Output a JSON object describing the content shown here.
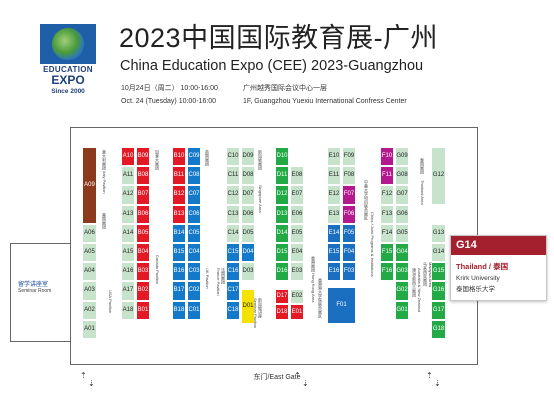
{
  "header": {
    "logo_line1": "EDUCATION",
    "logo_line2": "EXPO",
    "logo_line3": "Since 2000",
    "title_cn": "2023中国国际教育展-广州",
    "title_en": "China Education Expo (CEE) 2023-Guangzhou",
    "date_cn": "10月24日（周二） 10:00-16:00",
    "date_en": "Oct. 24 (Tuesday) 10:00-16:00",
    "venue_cn": "广州越秀国际会议中心一层",
    "venue_en": "1F, Guangzhou Yuexiu International Confress Center"
  },
  "seminar": {
    "cn": "留学讲座室",
    "en": "Seminar Room"
  },
  "gate_label": "东门/East Gate",
  "callout": {
    "booth": "G14",
    "country": "Thailand / 泰国",
    "name_en": "Krirk University",
    "name_cn": "泰国格乐大学"
  },
  "colors": {
    "light_green": "#c7e3cc",
    "brown": "#8b3a1e",
    "red": "#e31a25",
    "blue": "#1479c8",
    "green": "#23a946",
    "yellow": "#f4e300",
    "navy": "#1b6fc1",
    "magenta": "#b4198e",
    "accent": "#a4202f"
  },
  "columns": [
    {
      "zone_labels": [
        "意大利展团 Italy Pavilion",
        "美国展团",
        "USA Pavilion"
      ],
      "booths": [
        {
          "id": "A09",
          "color": "brown",
          "row": 0,
          "span": 4,
          "side": "L"
        },
        {
          "id": "A06",
          "color": "light_green",
          "row": 4,
          "span": 1,
          "side": "L"
        },
        {
          "id": "A05",
          "color": "light_green",
          "row": 5,
          "span": 1,
          "side": "L"
        },
        {
          "id": "A04",
          "color": "light_green",
          "row": 6,
          "span": 1,
          "side": "L"
        },
        {
          "id": "A03",
          "color": "light_green",
          "row": 7,
          "span": 1,
          "side": "L"
        },
        {
          "id": "A02",
          "color": "light_green",
          "row": 8,
          "span": 1,
          "side": "L"
        },
        {
          "id": "A01",
          "color": "light_green",
          "row": 9,
          "span": 1,
          "side": "L"
        }
      ]
    },
    {
      "zone_labels": [
        "加拿大展团",
        "Canada Pavilion"
      ],
      "booths": [
        {
          "id": "A10",
          "color": "red",
          "row": 0,
          "span": 1,
          "side": "L"
        },
        {
          "id": "A11",
          "color": "light_green",
          "row": 1,
          "span": 1,
          "side": "L"
        },
        {
          "id": "A12",
          "color": "light_green",
          "row": 2,
          "span": 1,
          "side": "L"
        },
        {
          "id": "A13",
          "color": "light_green",
          "row": 3,
          "span": 1,
          "side": "L"
        },
        {
          "id": "A14",
          "color": "light_green",
          "row": 4,
          "span": 1,
          "side": "L"
        },
        {
          "id": "A15",
          "color": "light_green",
          "row": 5,
          "span": 1,
          "side": "L"
        },
        {
          "id": "A16",
          "color": "light_green",
          "row": 6,
          "span": 1,
          "side": "L"
        },
        {
          "id": "A17",
          "color": "light_green",
          "row": 7,
          "span": 1,
          "side": "L"
        },
        {
          "id": "A18",
          "color": "light_green",
          "row": 8,
          "span": 1,
          "side": "L"
        },
        {
          "id": "B09",
          "color": "red",
          "row": 0,
          "span": 1,
          "side": "R"
        },
        {
          "id": "B08",
          "color": "red",
          "row": 1,
          "span": 1,
          "side": "R"
        },
        {
          "id": "B07",
          "color": "red",
          "row": 2,
          "span": 1,
          "side": "R"
        },
        {
          "id": "B06",
          "color": "red",
          "row": 3,
          "span": 1,
          "side": "R"
        },
        {
          "id": "B05",
          "color": "red",
          "row": 4,
          "span": 1,
          "side": "R"
        },
        {
          "id": "B04",
          "color": "red",
          "row": 5,
          "span": 1,
          "side": "R"
        },
        {
          "id": "B03",
          "color": "red",
          "row": 6,
          "span": 1,
          "side": "R"
        },
        {
          "id": "B02",
          "color": "red",
          "row": 7,
          "span": 1,
          "side": "R"
        },
        {
          "id": "B01",
          "color": "red",
          "row": 8,
          "span": 1,
          "side": "R"
        }
      ]
    },
    {
      "zone_labels": [
        "英国展团",
        "UK Pavilion"
      ],
      "booths": [
        {
          "id": "B10",
          "color": "red",
          "row": 0,
          "span": 1,
          "side": "L"
        },
        {
          "id": "B11",
          "color": "red",
          "row": 1,
          "span": 1,
          "side": "L"
        },
        {
          "id": "B12",
          "color": "red",
          "row": 2,
          "span": 1,
          "side": "L"
        },
        {
          "id": "B13",
          "color": "red",
          "row": 3,
          "span": 1,
          "side": "L"
        },
        {
          "id": "B14",
          "color": "blue",
          "row": 4,
          "span": 1,
          "side": "L"
        },
        {
          "id": "B15",
          "color": "blue",
          "row": 5,
          "span": 1,
          "side": "L"
        },
        {
          "id": "B16",
          "color": "blue",
          "row": 6,
          "span": 1,
          "side": "L"
        },
        {
          "id": "B17",
          "color": "blue",
          "row": 7,
          "span": 1,
          "side": "L"
        },
        {
          "id": "B18",
          "color": "blue",
          "row": 8,
          "span": 1,
          "side": "L"
        },
        {
          "id": "C09",
          "color": "blue",
          "row": 0,
          "span": 1,
          "side": "R"
        },
        {
          "id": "C08",
          "color": "blue",
          "row": 1,
          "span": 1,
          "side": "R"
        },
        {
          "id": "C07",
          "color": "blue",
          "row": 2,
          "span": 1,
          "side": "R"
        },
        {
          "id": "C06",
          "color": "blue",
          "row": 3,
          "span": 1,
          "side": "R"
        },
        {
          "id": "C05",
          "color": "blue",
          "row": 4,
          "span": 1,
          "side": "R"
        },
        {
          "id": "C04",
          "color": "blue",
          "row": 5,
          "span": 1,
          "side": "R"
        },
        {
          "id": "C03",
          "color": "blue",
          "row": 6,
          "span": 1,
          "side": "R"
        },
        {
          "id": "C02",
          "color": "blue",
          "row": 7,
          "span": 1,
          "side": "R"
        },
        {
          "id": "C01",
          "color": "blue",
          "row": 8,
          "span": 1,
          "side": "R"
        }
      ]
    },
    {
      "zone_labels": [
        "新加坡展团",
        "Singapore Area",
        "法国展团",
        "France Pavilion",
        "新加坡讲座",
        "Seminar Pavilion"
      ],
      "booths": [
        {
          "id": "C10",
          "color": "light_green",
          "row": 0,
          "span": 1,
          "side": "L"
        },
        {
          "id": "C11",
          "color": "light_green",
          "row": 1,
          "span": 1,
          "side": "L"
        },
        {
          "id": "C12",
          "color": "light_green",
          "row": 2,
          "span": 1,
          "side": "L"
        },
        {
          "id": "C13",
          "color": "light_green",
          "row": 3,
          "span": 1,
          "side": "L"
        },
        {
          "id": "C14",
          "color": "light_green",
          "row": 4,
          "span": 1,
          "side": "L"
        },
        {
          "id": "C15",
          "color": "blue",
          "row": 5,
          "span": 1,
          "side": "L"
        },
        {
          "id": "C16",
          "color": "blue",
          "row": 6,
          "span": 1,
          "side": "L"
        },
        {
          "id": "C17",
          "color": "blue",
          "row": 7,
          "span": 1,
          "side": "L"
        },
        {
          "id": "C18",
          "color": "blue",
          "row": 8,
          "span": 1,
          "side": "L"
        },
        {
          "id": "D09",
          "color": "light_green",
          "row": 0,
          "span": 1,
          "side": "R"
        },
        {
          "id": "D08",
          "color": "light_green",
          "row": 1,
          "span": 1,
          "side": "R"
        },
        {
          "id": "D07",
          "color": "light_green",
          "row": 2,
          "span": 1,
          "side": "R"
        },
        {
          "id": "D06",
          "color": "light_green",
          "row": 3,
          "span": 1,
          "side": "R"
        },
        {
          "id": "D05",
          "color": "light_green",
          "row": 4,
          "span": 1,
          "side": "R"
        },
        {
          "id": "D04",
          "color": "blue",
          "row": 5,
          "span": 1,
          "side": "R"
        },
        {
          "id": "D03",
          "color": "light_green",
          "row": 6,
          "span": 1,
          "side": "R"
        },
        {
          "id": "D01",
          "color": "yellow",
          "row": 7.4,
          "span": 1.8,
          "side": "R"
        }
      ]
    },
    {
      "zone_labels": [
        "香港展团 Hong Kong Area",
        "香港港大学院联合展区"
      ],
      "booths": [
        {
          "id": "D10",
          "color": "green",
          "row": 0,
          "span": 1,
          "side": "L"
        },
        {
          "id": "D11",
          "color": "green",
          "row": 1,
          "span": 1,
          "side": "L"
        },
        {
          "id": "D12",
          "color": "green",
          "row": 2,
          "span": 1,
          "side": "L"
        },
        {
          "id": "D13",
          "color": "green",
          "row": 3,
          "span": 1,
          "side": "L"
        },
        {
          "id": "D14",
          "color": "green",
          "row": 4,
          "span": 1,
          "side": "L"
        },
        {
          "id": "D15",
          "color": "green",
          "row": 5,
          "span": 1,
          "side": "L"
        },
        {
          "id": "D16",
          "color": "green",
          "row": 6,
          "span": 1,
          "side": "L"
        },
        {
          "id": "D17",
          "color": "red",
          "row": 7.4,
          "span": 0.8,
          "side": "L"
        },
        {
          "id": "D18",
          "color": "red",
          "row": 8.2,
          "span": 0.8,
          "side": "L"
        },
        {
          "id": "E08",
          "color": "light_green",
          "row": 1,
          "span": 1,
          "side": "R"
        },
        {
          "id": "E07",
          "color": "light_green",
          "row": 2,
          "span": 1,
          "side": "R"
        },
        {
          "id": "E06",
          "color": "light_green",
          "row": 3,
          "span": 1,
          "side": "R"
        },
        {
          "id": "E05",
          "color": "light_green",
          "row": 4,
          "span": 1,
          "side": "R"
        },
        {
          "id": "E04",
          "color": "light_green",
          "row": 5,
          "span": 1,
          "side": "R"
        },
        {
          "id": "E03",
          "color": "light_green",
          "row": 6,
          "span": 1,
          "side": "R"
        },
        {
          "id": "E02",
          "color": "light_green",
          "row": 7.4,
          "span": 0.8,
          "side": "R"
        },
        {
          "id": "E01",
          "color": "red",
          "row": 8.2,
          "span": 0.8,
          "side": "R"
        }
      ]
    },
    {
      "zone_labels": [
        "中美大学项目联合展区",
        "China / Joint Programs & Institutions"
      ],
      "booths": [
        {
          "id": "E10",
          "color": "light_green",
          "row": 0,
          "span": 1,
          "side": "L"
        },
        {
          "id": "E11",
          "color": "light_green",
          "row": 1,
          "span": 1,
          "side": "L"
        },
        {
          "id": "E12",
          "color": "light_green",
          "row": 2,
          "span": 1,
          "side": "L"
        },
        {
          "id": "E13",
          "color": "light_green",
          "row": 3,
          "span": 1,
          "side": "L"
        },
        {
          "id": "E14",
          "color": "navy",
          "row": 4,
          "span": 1,
          "side": "L"
        },
        {
          "id": "E15",
          "color": "navy",
          "row": 5,
          "span": 1,
          "side": "L"
        },
        {
          "id": "E16",
          "color": "navy",
          "row": 6,
          "span": 1,
          "side": "L"
        },
        {
          "id": "F09",
          "color": "light_green",
          "row": 0,
          "span": 1,
          "side": "R"
        },
        {
          "id": "F08",
          "color": "light_green",
          "row": 1,
          "span": 1,
          "side": "R"
        },
        {
          "id": "F07",
          "color": "magenta",
          "row": 2,
          "span": 1,
          "side": "R"
        },
        {
          "id": "F06",
          "color": "magenta",
          "row": 3,
          "span": 1,
          "side": "R"
        },
        {
          "id": "F05",
          "color": "navy",
          "row": 4,
          "span": 1,
          "side": "R"
        },
        {
          "id": "F04",
          "color": "navy",
          "row": 5,
          "span": 1,
          "side": "R"
        },
        {
          "id": "F03",
          "color": "navy",
          "row": 6,
          "span": 1,
          "side": "R"
        },
        {
          "id": "F01",
          "color": "navy",
          "row": 7.3,
          "span": 1.9,
          "side": "W"
        }
      ]
    },
    {
      "zone_labels": [
        "泰国展团",
        "Thailand Area",
        "澳洲/新西兰展团",
        "Australia & New Zealand",
        "马来西亚展团",
        "Malaysia Area"
      ],
      "booths": [
        {
          "id": "F10",
          "color": "magenta",
          "row": 0,
          "span": 1,
          "side": "L"
        },
        {
          "id": "F11",
          "color": "magenta",
          "row": 1,
          "span": 1,
          "side": "L"
        },
        {
          "id": "F12",
          "color": "light_green",
          "row": 2,
          "span": 1,
          "side": "L"
        },
        {
          "id": "F13",
          "color": "light_green",
          "row": 3,
          "span": 1,
          "side": "L"
        },
        {
          "id": "F14",
          "color": "light_green",
          "row": 4,
          "span": 1,
          "side": "L"
        },
        {
          "id": "F15",
          "color": "green",
          "row": 5,
          "span": 1,
          "side": "L"
        },
        {
          "id": "F16",
          "color": "green",
          "row": 6,
          "span": 1,
          "side": "L"
        },
        {
          "id": "G09",
          "color": "light_green",
          "row": 0,
          "span": 1,
          "side": "R"
        },
        {
          "id": "G08",
          "color": "light_green",
          "row": 1,
          "span": 1,
          "side": "R"
        },
        {
          "id": "G07",
          "color": "light_green",
          "row": 2,
          "span": 1,
          "side": "R"
        },
        {
          "id": "G06",
          "color": "light_green",
          "row": 3,
          "span": 1,
          "side": "R"
        },
        {
          "id": "G05",
          "color": "light_green",
          "row": 4,
          "span": 1,
          "side": "R"
        },
        {
          "id": "G04",
          "color": "green",
          "row": 5,
          "span": 1,
          "side": "R"
        },
        {
          "id": "G03",
          "color": "green",
          "row": 6,
          "span": 1,
          "side": "R"
        },
        {
          "id": "G02",
          "color": "green",
          "row": 7,
          "span": 1,
          "side": "R"
        },
        {
          "id": "G01",
          "color": "green",
          "row": 8,
          "span": 1,
          "side": "R"
        }
      ]
    },
    {
      "zone_labels": [],
      "booths": [
        {
          "id": "G12",
          "color": "light_green",
          "row": 0,
          "span": 3,
          "side": "W"
        },
        {
          "id": "G13",
          "color": "light_green",
          "row": 4,
          "span": 1,
          "side": "W"
        },
        {
          "id": "G14",
          "color": "light_green",
          "row": 5,
          "span": 1,
          "side": "W"
        },
        {
          "id": "G15",
          "color": "green",
          "row": 6,
          "span": 1,
          "side": "W"
        },
        {
          "id": "G16",
          "color": "green",
          "row": 7,
          "span": 1,
          "side": "W"
        },
        {
          "id": "G17",
          "color": "green",
          "row": 8,
          "span": 1,
          "side": "W"
        },
        {
          "id": "G18",
          "color": "green",
          "row": 9,
          "span": 1,
          "side": "W"
        }
      ]
    }
  ]
}
